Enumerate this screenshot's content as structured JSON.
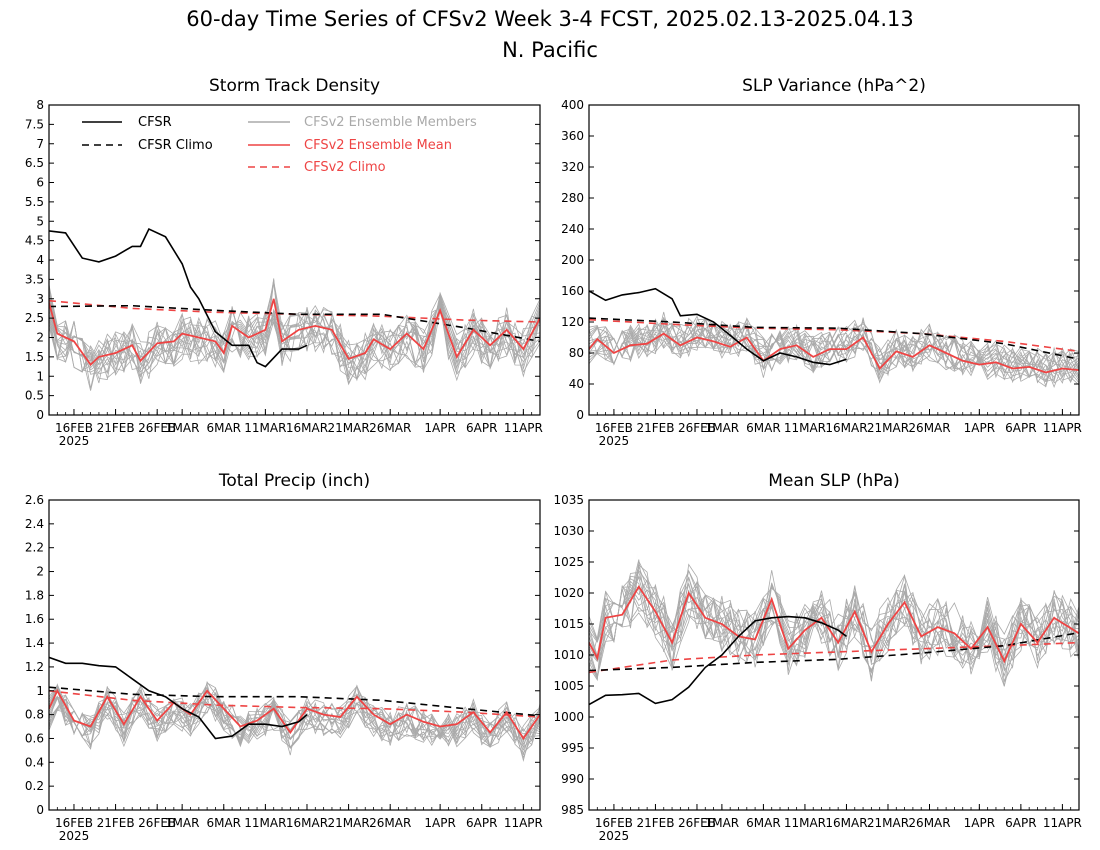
{
  "figure": {
    "title_line1": "60-day Time Series of CFSv2 Week 3-4 FCST, 2025.02.13-2025.04.13",
    "title_line2": "N. Pacific",
    "colors": {
      "cfsr": "#000000",
      "ensemble_members": "#aaaaaa",
      "ensemble_mean": "#ee4444",
      "cfsv2_climo": "#ee4444"
    }
  },
  "legend": {
    "cfsr": "CFSR",
    "cfsr_climo": "CFSR Climo",
    "members": "CFSv2 Ensemble Members",
    "mean": "CFSv2 Ensemble Mean",
    "cfsv2_climo": "CFSv2 Climo"
  },
  "x_axis": {
    "start_date": "2025-02-13",
    "end_date": "2025-04-13",
    "ticks": [
      {
        "date": "2025-02-16",
        "label": "16FEB"
      },
      {
        "date": "2025-02-21",
        "label": "21FEB"
      },
      {
        "date": "2025-02-26",
        "label": "26FEB"
      },
      {
        "date": "2025-03-01",
        "label": "1MAR"
      },
      {
        "date": "2025-03-06",
        "label": "6MAR"
      },
      {
        "date": "2025-03-11",
        "label": "11MAR"
      },
      {
        "date": "2025-03-16",
        "label": "16MAR"
      },
      {
        "date": "2025-03-21",
        "label": "21MAR"
      },
      {
        "date": "2025-03-26",
        "label": "26MAR"
      },
      {
        "date": "2025-04-01",
        "label": "1APR"
      },
      {
        "date": "2025-04-06",
        "label": "6APR"
      },
      {
        "date": "2025-04-11",
        "label": "11APR"
      }
    ],
    "year_label": "2025"
  },
  "chart_data": [
    {
      "type": "line",
      "title": "Storm Track Density",
      "ylim": [
        0,
        8
      ],
      "yticks": [
        "0",
        "0.5",
        "1",
        "1.5",
        "2",
        "2.5",
        "3",
        "3.5",
        "4",
        "4.5",
        "5",
        "5.5",
        "6",
        "6.5",
        "7",
        "7.5",
        "8"
      ],
      "show_legend": true,
      "legend_placement": "top",
      "members_envelope": {
        "spread": 0.55,
        "lo": 0.1,
        "hi": 5.3
      },
      "series": [
        {
          "name": "CFSR",
          "color": "#000000",
          "dash": false,
          "x": [
            "2025-02-13",
            "2025-02-15",
            "2025-02-17",
            "2025-02-19",
            "2025-02-21",
            "2025-02-23",
            "2025-02-24",
            "2025-02-25",
            "2025-02-27",
            "2025-03-01",
            "2025-03-02",
            "2025-03-03",
            "2025-03-05",
            "2025-03-07",
            "2025-03-09",
            "2025-03-10",
            "2025-03-11",
            "2025-03-13",
            "2025-03-15",
            "2025-03-16"
          ],
          "y": [
            4.75,
            4.7,
            4.05,
            3.95,
            4.1,
            4.35,
            4.35,
            4.8,
            4.6,
            3.9,
            3.3,
            3.0,
            2.15,
            1.8,
            1.8,
            1.35,
            1.25,
            1.7,
            1.7,
            1.8
          ]
        },
        {
          "name": "CFSR Climo",
          "color": "#000000",
          "dash": true,
          "x": [
            "2025-02-13",
            "2025-02-23",
            "2025-03-05",
            "2025-03-15",
            "2025-03-25",
            "2025-04-04",
            "2025-04-13"
          ],
          "y": [
            2.8,
            2.82,
            2.7,
            2.6,
            2.6,
            2.25,
            1.9
          ]
        },
        {
          "name": "CFSv2 Climo",
          "color": "#ee4444",
          "dash": true,
          "x": [
            "2025-02-13",
            "2025-02-23",
            "2025-03-05",
            "2025-03-15",
            "2025-03-25",
            "2025-04-04",
            "2025-04-13"
          ],
          "y": [
            2.95,
            2.75,
            2.65,
            2.6,
            2.55,
            2.45,
            2.4
          ]
        },
        {
          "name": "CFSv2 Ensemble Mean",
          "color": "#ee4444",
          "dash": false,
          "x": [
            "2025-02-13",
            "2025-02-14",
            "2025-02-16",
            "2025-02-18",
            "2025-02-19",
            "2025-02-21",
            "2025-02-23",
            "2025-02-24",
            "2025-02-26",
            "2025-02-28",
            "2025-03-01",
            "2025-03-03",
            "2025-03-05",
            "2025-03-06",
            "2025-03-07",
            "2025-03-09",
            "2025-03-11",
            "2025-03-12",
            "2025-03-13",
            "2025-03-15",
            "2025-03-17",
            "2025-03-19",
            "2025-03-21",
            "2025-03-23",
            "2025-03-24",
            "2025-03-26",
            "2025-03-28",
            "2025-03-30",
            "2025-04-01",
            "2025-04-03",
            "2025-04-05",
            "2025-04-07",
            "2025-04-09",
            "2025-04-11",
            "2025-04-13"
          ],
          "y": [
            2.9,
            2.1,
            1.9,
            1.3,
            1.5,
            1.6,
            1.8,
            1.4,
            1.85,
            1.9,
            2.1,
            2.0,
            1.9,
            1.6,
            2.3,
            2.0,
            2.2,
            3.0,
            1.9,
            2.2,
            2.3,
            2.2,
            1.45,
            1.6,
            1.95,
            1.7,
            2.1,
            1.7,
            2.7,
            1.5,
            2.2,
            1.8,
            2.2,
            1.7,
            2.5
          ]
        }
      ]
    },
    {
      "type": "line",
      "title": "SLP Variance (hPa^2)",
      "ylim": [
        0,
        400
      ],
      "yticks": [
        "0",
        "40",
        "80",
        "120",
        "160",
        "200",
        "240",
        "280",
        "320",
        "360",
        "400"
      ],
      "show_legend": false,
      "members_envelope": {
        "spread": 22,
        "lo": 20,
        "hi": 210
      },
      "series": [
        {
          "name": "CFSR",
          "color": "#000000",
          "dash": false,
          "x": [
            "2025-02-13",
            "2025-02-15",
            "2025-02-17",
            "2025-02-19",
            "2025-02-21",
            "2025-02-23",
            "2025-02-24",
            "2025-02-26",
            "2025-02-28",
            "2025-03-02",
            "2025-03-04",
            "2025-03-06",
            "2025-03-08",
            "2025-03-10",
            "2025-03-12",
            "2025-03-14",
            "2025-03-16"
          ],
          "y": [
            160,
            148,
            155,
            158,
            163,
            150,
            128,
            130,
            120,
            103,
            85,
            70,
            80,
            75,
            68,
            65,
            72
          ]
        },
        {
          "name": "CFSR Climo",
          "color": "#000000",
          "dash": true,
          "x": [
            "2025-02-13",
            "2025-02-23",
            "2025-03-05",
            "2025-03-15",
            "2025-03-25",
            "2025-04-04",
            "2025-04-13"
          ],
          "y": [
            125,
            120,
            113,
            112,
            105,
            92,
            72
          ]
        },
        {
          "name": "CFSv2 Climo",
          "color": "#ee4444",
          "dash": true,
          "x": [
            "2025-02-13",
            "2025-02-23",
            "2025-03-05",
            "2025-03-15",
            "2025-03-25",
            "2025-04-04",
            "2025-04-13"
          ],
          "y": [
            123,
            117,
            112,
            110,
            105,
            95,
            82
          ]
        },
        {
          "name": "CFSv2 Ensemble Mean",
          "color": "#ee4444",
          "dash": false,
          "x": [
            "2025-02-13",
            "2025-02-14",
            "2025-02-16",
            "2025-02-18",
            "2025-02-20",
            "2025-02-22",
            "2025-02-24",
            "2025-02-26",
            "2025-02-28",
            "2025-03-02",
            "2025-03-04",
            "2025-03-06",
            "2025-03-08",
            "2025-03-10",
            "2025-03-12",
            "2025-03-14",
            "2025-03-16",
            "2025-03-18",
            "2025-03-20",
            "2025-03-22",
            "2025-03-24",
            "2025-03-26",
            "2025-03-28",
            "2025-03-30",
            "2025-04-01",
            "2025-04-03",
            "2025-04-05",
            "2025-04-07",
            "2025-04-09",
            "2025-04-11",
            "2025-04-13"
          ],
          "y": [
            85,
            98,
            80,
            90,
            92,
            105,
            90,
            100,
            95,
            88,
            100,
            70,
            85,
            90,
            75,
            85,
            85,
            100,
            60,
            82,
            75,
            90,
            80,
            70,
            65,
            68,
            60,
            62,
            55,
            60,
            58
          ]
        }
      ]
    },
    {
      "type": "line",
      "title": "Total Precip (inch)",
      "ylim": [
        0,
        2.6
      ],
      "yticks": [
        "0",
        "0.2",
        "0.4",
        "0.6",
        "0.8",
        "1",
        "1.2",
        "1.4",
        "1.6",
        "1.8",
        "2",
        "2.2",
        "2.4",
        "2.6"
      ],
      "show_legend": false,
      "members_envelope": {
        "spread": 0.13,
        "lo": 0.25,
        "hi": 1.1
      },
      "series": [
        {
          "name": "CFSR",
          "color": "#000000",
          "dash": false,
          "x": [
            "2025-02-13",
            "2025-02-15",
            "2025-02-17",
            "2025-02-19",
            "2025-02-21",
            "2025-02-23",
            "2025-02-25",
            "2025-02-27",
            "2025-03-01",
            "2025-03-03",
            "2025-03-05",
            "2025-03-07",
            "2025-03-09",
            "2025-03-11",
            "2025-03-13",
            "2025-03-15",
            "2025-03-16"
          ],
          "y": [
            1.28,
            1.23,
            1.23,
            1.21,
            1.2,
            1.1,
            1.0,
            0.95,
            0.85,
            0.78,
            0.6,
            0.62,
            0.72,
            0.72,
            0.7,
            0.74,
            0.8
          ]
        },
        {
          "name": "CFSR Climo",
          "color": "#000000",
          "dash": true,
          "x": [
            "2025-02-13",
            "2025-02-23",
            "2025-03-05",
            "2025-03-15",
            "2025-03-25",
            "2025-04-04",
            "2025-04-13"
          ],
          "y": [
            1.03,
            0.97,
            0.95,
            0.95,
            0.92,
            0.85,
            0.79
          ]
        },
        {
          "name": "CFSv2 Climo",
          "color": "#ee4444",
          "dash": true,
          "x": [
            "2025-02-13",
            "2025-02-23",
            "2025-03-05",
            "2025-03-15",
            "2025-03-25",
            "2025-04-04",
            "2025-04-13"
          ],
          "y": [
            1.0,
            0.92,
            0.88,
            0.86,
            0.85,
            0.82,
            0.78
          ]
        },
        {
          "name": "CFSv2 Ensemble Mean",
          "color": "#ee4444",
          "dash": false,
          "x": [
            "2025-02-13",
            "2025-02-14",
            "2025-02-16",
            "2025-02-18",
            "2025-02-20",
            "2025-02-22",
            "2025-02-24",
            "2025-02-26",
            "2025-02-28",
            "2025-03-02",
            "2025-03-04",
            "2025-03-06",
            "2025-03-08",
            "2025-03-10",
            "2025-03-12",
            "2025-03-14",
            "2025-03-16",
            "2025-03-18",
            "2025-03-20",
            "2025-03-22",
            "2025-03-24",
            "2025-03-26",
            "2025-03-28",
            "2025-03-30",
            "2025-04-01",
            "2025-04-03",
            "2025-04-05",
            "2025-04-07",
            "2025-04-09",
            "2025-04-11",
            "2025-04-13"
          ],
          "y": [
            0.85,
            1.0,
            0.75,
            0.7,
            0.95,
            0.72,
            0.95,
            0.75,
            0.9,
            0.8,
            1.0,
            0.85,
            0.7,
            0.75,
            0.85,
            0.65,
            0.85,
            0.8,
            0.78,
            0.95,
            0.8,
            0.72,
            0.8,
            0.74,
            0.7,
            0.72,
            0.82,
            0.65,
            0.82,
            0.6,
            0.8
          ]
        }
      ]
    },
    {
      "type": "line",
      "title": "Mean SLP (hPa)",
      "ylim": [
        985,
        1035
      ],
      "yticks": [
        "985",
        "990",
        "995",
        "1000",
        "1005",
        "1010",
        "1015",
        "1020",
        "1025",
        "1030",
        "1035"
      ],
      "show_legend": false,
      "members_envelope": {
        "spread": 4.2,
        "lo": 995,
        "hi": 1028
      },
      "series": [
        {
          "name": "CFSR",
          "color": "#000000",
          "dash": false,
          "x": [
            "2025-02-13",
            "2025-02-15",
            "2025-02-17",
            "2025-02-19",
            "2025-02-21",
            "2025-02-23",
            "2025-02-25",
            "2025-02-27",
            "2025-03-01",
            "2025-03-03",
            "2025-03-05",
            "2025-03-07",
            "2025-03-09",
            "2025-03-11",
            "2025-03-13",
            "2025-03-15",
            "2025-03-16"
          ],
          "y": [
            1002,
            1003.5,
            1003.6,
            1003.8,
            1002.2,
            1002.8,
            1004.8,
            1008,
            1010,
            1013,
            1015.5,
            1016,
            1016.2,
            1016,
            1015.2,
            1014,
            1013
          ]
        },
        {
          "name": "CFSR Climo",
          "color": "#000000",
          "dash": true,
          "x": [
            "2025-02-13",
            "2025-02-23",
            "2025-03-05",
            "2025-03-15",
            "2025-03-25",
            "2025-04-04",
            "2025-04-13"
          ],
          "y": [
            1007.5,
            1008,
            1008.8,
            1009.3,
            1010.3,
            1011.5,
            1013.6
          ]
        },
        {
          "name": "CFSv2 Climo",
          "color": "#ee4444",
          "dash": true,
          "x": [
            "2025-02-13",
            "2025-02-23",
            "2025-03-05",
            "2025-03-15",
            "2025-03-25",
            "2025-04-04",
            "2025-04-13"
          ],
          "y": [
            1007.2,
            1009.2,
            1010,
            1010.5,
            1011,
            1011.5,
            1012
          ]
        },
        {
          "name": "CFSv2 Ensemble Mean",
          "color": "#ee4444",
          "dash": false,
          "x": [
            "2025-02-13",
            "2025-02-14",
            "2025-02-15",
            "2025-02-17",
            "2025-02-19",
            "2025-02-21",
            "2025-02-23",
            "2025-02-25",
            "2025-02-27",
            "2025-03-01",
            "2025-03-03",
            "2025-03-05",
            "2025-03-07",
            "2025-03-09",
            "2025-03-11",
            "2025-03-13",
            "2025-03-15",
            "2025-03-17",
            "2025-03-19",
            "2025-03-21",
            "2025-03-23",
            "2025-03-25",
            "2025-03-27",
            "2025-03-29",
            "2025-03-31",
            "2025-04-02",
            "2025-04-04",
            "2025-04-06",
            "2025-04-08",
            "2025-04-10",
            "2025-04-13"
          ],
          "y": [
            1012,
            1009.5,
            1016,
            1016.5,
            1021,
            1017,
            1012,
            1020,
            1016,
            1015,
            1013,
            1012.5,
            1019,
            1011,
            1014,
            1016,
            1012,
            1017,
            1010.5,
            1015,
            1018.5,
            1013,
            1014.5,
            1013.5,
            1011,
            1014.5,
            1009,
            1015,
            1012,
            1016,
            1013.5
          ]
        }
      ]
    }
  ]
}
